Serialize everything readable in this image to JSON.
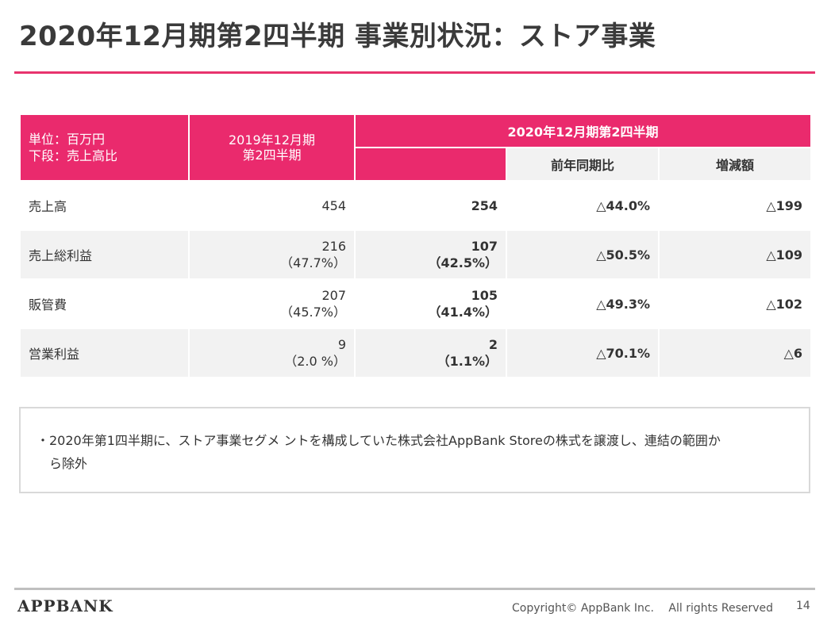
{
  "title": "2020年12月期第2四半期 事業別状況：ストア事業",
  "table": {
    "unit_label_1": "単位：百万円",
    "unit_label_2": "下段：売上高比",
    "prev_header_1": "2019年12月期",
    "prev_header_2": "第2四半期",
    "current_header": "2020年12月期第2四半期",
    "yoy_header": "前年同期比",
    "diff_header": "増減額",
    "rows": [
      {
        "label": "売上高",
        "prev": "454",
        "prev_ratio": "",
        "cur": "254",
        "cur_ratio": "",
        "yoy": "△44.0%",
        "diff": "△199"
      },
      {
        "label": "売上総利益",
        "prev": "216",
        "prev_ratio": "（47.7%）",
        "cur": "107",
        "cur_ratio": "（42.5%）",
        "yoy": "△50.5%",
        "diff": "△109"
      },
      {
        "label": "販管費",
        "prev": "207",
        "prev_ratio": "（45.7%）",
        "cur": "105",
        "cur_ratio": "（41.4%）",
        "yoy": "△49.3%",
        "diff": "△102"
      },
      {
        "label": "営業利益",
        "prev": "9",
        "prev_ratio": "（2.0 %）",
        "cur": "2",
        "cur_ratio": "（1.1%）",
        "yoy": "△70.1%",
        "diff": "△6"
      }
    ]
  },
  "note": {
    "line1": "・2020年第1四半期に、ストア事業セグメ ントを構成していた株式会社AppBank Storeの株式を譲渡し、連結の範囲か",
    "line2": "　ら除外"
  },
  "footer": {
    "logo": "APPBANK",
    "copyright": "Copyright© AppBank Inc.　 All rights Reserved",
    "page": "14"
  }
}
